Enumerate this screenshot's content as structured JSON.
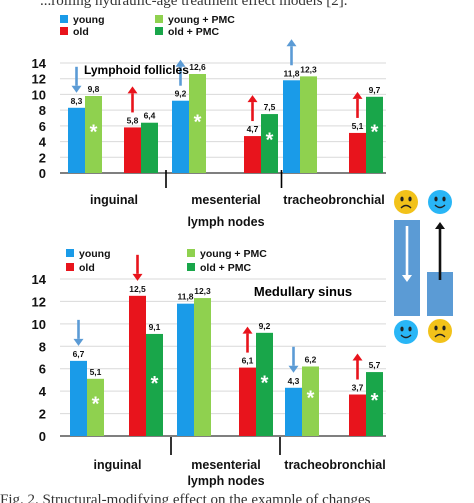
{
  "caption_top": "...rolling hydraulic-age treatment effect models   [2].",
  "caption_bottom": "Fig. 2.  Structural-modifying effect on the example of changes",
  "colors": {
    "young": "#1a9be8",
    "old": "#e8141c",
    "young_pmc": "#8fd14f",
    "old_pmc": "#19a64a",
    "arrow_blue": "#5b9bd5",
    "arrow_red": "#e8141c",
    "column": "#5b9bd5",
    "face": "#29b6f6",
    "face_sad": "#f2c21a"
  },
  "chart_data": [
    {
      "type": "bar",
      "title": "Lymphoid follicles",
      "categories": [
        "inguinal",
        "mesenterial",
        "tracheobronchial"
      ],
      "xlabel": "lymph nodes",
      "ylim": [
        0,
        14
      ],
      "yticks": [
        0,
        2,
        4,
        6,
        8,
        10,
        12,
        14
      ],
      "grid": true,
      "legend_position": "top",
      "series": [
        {
          "name": "young",
          "values": [
            8.3,
            9.2,
            11.8
          ],
          "labels": [
            "8,3",
            "9,2",
            "11,8"
          ]
        },
        {
          "name": "young + PMC",
          "values": [
            9.8,
            12.6,
            12.3
          ],
          "labels": [
            "9,8",
            "12,6",
            "12,3"
          ],
          "asterisk": [
            true,
            true,
            false
          ]
        },
        {
          "name": "old",
          "values": [
            5.8,
            4.7,
            5.1
          ],
          "labels": [
            "5,8",
            "4,7",
            "5,1"
          ]
        },
        {
          "name": "old + PMC",
          "values": [
            6.4,
            7.5,
            9.7
          ],
          "labels": [
            "6,4",
            "7,5",
            "9,7"
          ],
          "asterisk": [
            false,
            true,
            true
          ]
        }
      ],
      "arrows": [
        {
          "category": 0,
          "series": "young",
          "direction": "down",
          "color": "blue"
        },
        {
          "category": 0,
          "series": "old",
          "direction": "up",
          "color": "red"
        },
        {
          "category": 1,
          "series": "young",
          "direction": "up",
          "color": "blue"
        },
        {
          "category": 1,
          "series": "old",
          "direction": "up",
          "color": "red"
        },
        {
          "category": 2,
          "series": "young",
          "direction": "up",
          "color": "blue"
        },
        {
          "category": 2,
          "series": "old",
          "direction": "up",
          "color": "red"
        }
      ]
    },
    {
      "type": "bar",
      "title": "Medullary sinus",
      "categories": [
        "inguinal",
        "mesenterial",
        "tracheobronchial"
      ],
      "xlabel": "lymph nodes",
      "ylim": [
        0,
        14
      ],
      "yticks": [
        0,
        2,
        4,
        6,
        8,
        10,
        12,
        14
      ],
      "grid": true,
      "legend_position": "top",
      "series": [
        {
          "name": "young",
          "values": [
            6.7,
            11.8,
            4.3
          ],
          "labels": [
            "6,7",
            "11,8",
            "4,3"
          ]
        },
        {
          "name": "young + PMC",
          "values": [
            5.1,
            12.3,
            6.2
          ],
          "labels": [
            "5,1",
            "12,3",
            "6,2"
          ],
          "asterisk": [
            true,
            false,
            true
          ]
        },
        {
          "name": "old",
          "values": [
            12.5,
            6.1,
            3.7
          ],
          "labels": [
            "12,5",
            "6,1",
            "3,7"
          ]
        },
        {
          "name": "old + PMC",
          "values": [
            9.1,
            9.2,
            5.7
          ],
          "labels": [
            "9,1",
            "9,2",
            "5,7"
          ],
          "asterisk": [
            true,
            true,
            true
          ]
        }
      ],
      "arrows": [
        {
          "category": 0,
          "series": "young",
          "direction": "down",
          "color": "blue"
        },
        {
          "category": 0,
          "series": "old",
          "direction": "down",
          "color": "red"
        },
        {
          "category": 1,
          "series": "old",
          "direction": "up",
          "color": "red"
        },
        {
          "category": 2,
          "series": "young",
          "direction": "down",
          "color": "blue"
        },
        {
          "category": 2,
          "series": "old",
          "direction": "up",
          "color": "red"
        }
      ]
    }
  ],
  "key_panel": {
    "items": [
      {
        "name": "decrease",
        "top_face": "sad",
        "arrow": "down",
        "bottom_face": "happy"
      },
      {
        "name": "increase",
        "top_face": "happy",
        "arrow": "up",
        "bottom_face": "sad"
      }
    ]
  }
}
